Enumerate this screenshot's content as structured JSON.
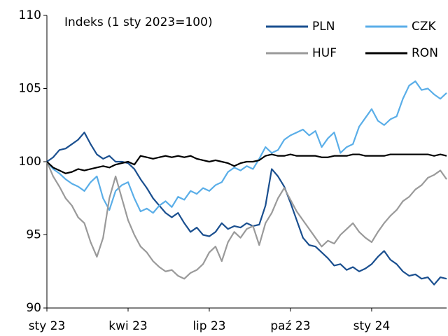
{
  "chart_data": {
    "type": "line",
    "annotation": "Indeks (1 sty 2023=100)",
    "categories": [
      "sty 23",
      null,
      null,
      null,
      null,
      null,
      null,
      null,
      null,
      null,
      null,
      null,
      null,
      "kwi 23",
      null,
      null,
      null,
      null,
      null,
      null,
      null,
      null,
      null,
      null,
      null,
      null,
      "lip 23",
      null,
      null,
      null,
      null,
      null,
      null,
      null,
      null,
      null,
      null,
      null,
      null,
      "paź 23",
      null,
      null,
      null,
      null,
      null,
      null,
      null,
      null,
      null,
      null,
      null,
      null,
      "sty 24",
      null,
      null,
      null,
      null,
      null,
      null,
      null,
      null,
      null,
      null,
      null,
      null
    ],
    "series": [
      {
        "name": "PLN",
        "color": "#1a4f8f",
        "values": [
          100,
          100.3,
          100.8,
          100.9,
          101.2,
          101.5,
          102,
          101.2,
          100.5,
          100.2,
          100.4,
          100,
          100,
          99.9,
          99.5,
          98.8,
          98.2,
          97.5,
          97,
          96.5,
          96.2,
          96.5,
          95.8,
          95.2,
          95.5,
          95,
          94.9,
          95.2,
          95.8,
          95.4,
          95.6,
          95.5,
          95.8,
          95.6,
          95.7,
          97,
          99.5,
          99,
          98.3,
          97.2,
          96,
          94.8,
          94.3,
          94.2,
          93.8,
          93.4,
          92.9,
          93,
          92.6,
          92.8,
          92.5,
          92.7,
          93,
          93.5,
          93.9,
          93.3,
          93,
          92.5,
          92.2,
          92.3,
          92,
          92.1,
          91.6,
          92.1,
          92
        ]
      },
      {
        "name": "CZK",
        "color": "#5aaee8",
        "values": [
          100,
          99.5,
          99.2,
          98.8,
          98.5,
          98.3,
          98,
          98.6,
          99,
          97.5,
          96.7,
          98,
          98.4,
          98.6,
          97.5,
          96.6,
          96.8,
          96.5,
          97,
          97.3,
          96.9,
          97.6,
          97.4,
          98,
          97.8,
          98.2,
          98,
          98.4,
          98.6,
          99.3,
          99.6,
          99.4,
          99.7,
          99.5,
          100.2,
          101,
          100.6,
          100.8,
          101.5,
          101.8,
          102,
          102.2,
          101.8,
          102.1,
          101,
          101.6,
          102,
          100.6,
          101,
          101.2,
          102.4,
          103,
          103.6,
          102.8,
          102.5,
          102.9,
          103.1,
          104.3,
          105.2,
          105.5,
          104.9,
          105,
          104.6,
          104.3,
          104.7
        ]
      },
      {
        "name": "HUF",
        "color": "#9a9a9a",
        "values": [
          100,
          99,
          98.3,
          97.5,
          97,
          96.2,
          95.8,
          94.5,
          93.5,
          94.8,
          97.5,
          99,
          97.5,
          96,
          95,
          94.2,
          93.8,
          93.2,
          92.8,
          92.5,
          92.6,
          92.2,
          92,
          92.4,
          92.6,
          93,
          93.8,
          94.2,
          93.2,
          94.5,
          95.2,
          94.8,
          95.4,
          95.6,
          94.3,
          95.8,
          96.5,
          97.5,
          98.2,
          97.4,
          96.6,
          96,
          95.4,
          94.8,
          94.2,
          94.6,
          94.4,
          95,
          95.4,
          95.8,
          95.2,
          94.8,
          94.5,
          95.2,
          95.8,
          96.3,
          96.7,
          97.3,
          97.6,
          98.1,
          98.4,
          98.9,
          99.1,
          99.4,
          98.8
        ]
      },
      {
        "name": "RON",
        "color": "#000000",
        "values": [
          100,
          99.6,
          99.4,
          99.2,
          99.3,
          99.5,
          99.4,
          99.5,
          99.6,
          99.7,
          99.6,
          99.8,
          99.9,
          100,
          99.8,
          100.4,
          100.3,
          100.2,
          100.3,
          100.4,
          100.3,
          100.4,
          100.3,
          100.4,
          100.2,
          100.1,
          100,
          100.1,
          100,
          99.9,
          99.7,
          99.9,
          100,
          100,
          100.1,
          100.4,
          100.5,
          100.4,
          100.4,
          100.5,
          100.4,
          100.4,
          100.4,
          100.4,
          100.3,
          100.3,
          100.4,
          100.4,
          100.4,
          100.5,
          100.5,
          100.4,
          100.4,
          100.4,
          100.4,
          100.5,
          100.5,
          100.5,
          100.5,
          100.5,
          100.5,
          100.5,
          100.4,
          100.5,
          100.4
        ]
      }
    ],
    "ylim": [
      90,
      110
    ],
    "yticks": [
      90,
      95,
      100,
      105,
      110
    ],
    "grid": false
  }
}
